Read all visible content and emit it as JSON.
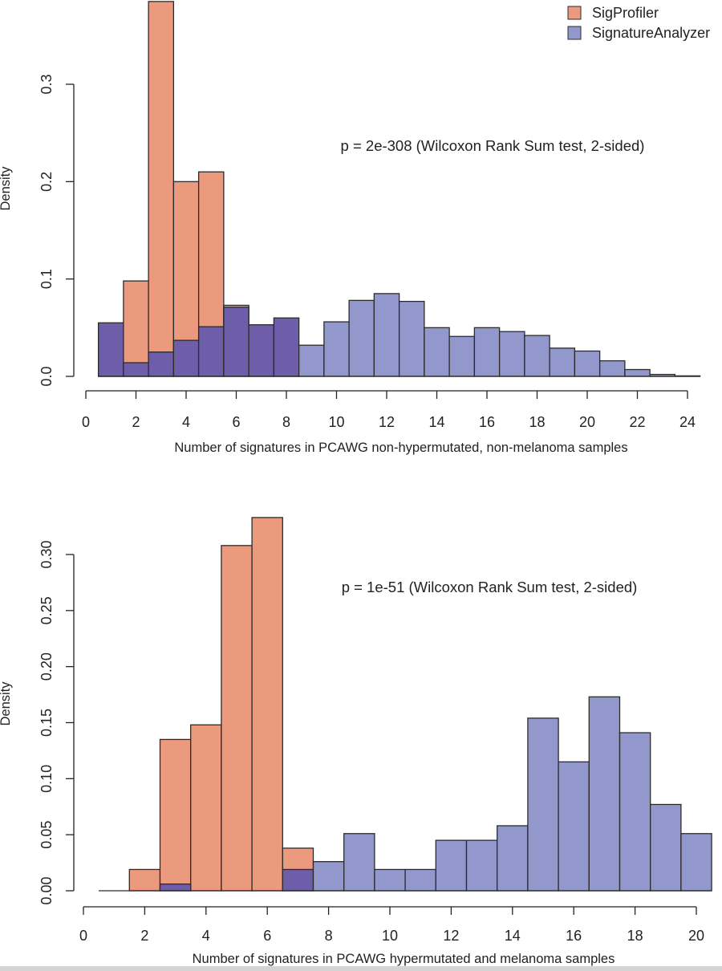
{
  "colors": {
    "sigprofiler": "#ec9a7d",
    "signatureanalyzer": "#9298cb",
    "overlap": "#6e5da8",
    "axis": "#222222",
    "bar_stroke": "#2b2b2b"
  },
  "legend": {
    "items": [
      {
        "label": "SigProfiler",
        "color": "#ec9a7d"
      },
      {
        "label": "SignatureAnalyzer",
        "color": "#9298cb"
      }
    ],
    "placement": "top-right"
  },
  "chart_data": [
    {
      "type": "bar",
      "subtype": "overlapping-histogram",
      "xlabel": "Number of signatures in PCAWG non-hypermutated, non-melanoma samples",
      "ylabel": "Density",
      "annotation": "p = 2e-308 (Wilcoxon Rank Sum test, 2-sided)",
      "xlim": [
        0,
        24
      ],
      "x_ticks": [
        "0",
        "2",
        "4",
        "6",
        "8",
        "10",
        "12",
        "14",
        "16",
        "18",
        "20",
        "22",
        "24"
      ],
      "ylim": [
        0,
        0.38
      ],
      "y_ticks": [
        "0.0",
        "0.1",
        "0.2",
        "0.3"
      ],
      "bin_starts": [
        0.5,
        1.5,
        2.5,
        3.5,
        4.5,
        5.5,
        6.5,
        7.5,
        8.5,
        9.5,
        10.5,
        11.5,
        12.5,
        13.5,
        14.5,
        15.5,
        16.5,
        17.5,
        18.5,
        19.5,
        20.5,
        21.5,
        22.5,
        23.5
      ],
      "bin_width": 1,
      "series": [
        {
          "name": "SigProfiler",
          "values": [
            0.003,
            0.098,
            0.385,
            0.2,
            0.21,
            0.073,
            0.023,
            0.012,
            0,
            0,
            0,
            0,
            0,
            0,
            0,
            0,
            0,
            0,
            0,
            0,
            0,
            0,
            0,
            0
          ]
        },
        {
          "name": "SignatureAnalyzer",
          "values": [
            0.055,
            0.014,
            0.025,
            0.037,
            0.051,
            0.071,
            0.053,
            0.06,
            0.032,
            0.056,
            0.078,
            0.085,
            0.077,
            0.05,
            0.041,
            0.05,
            0.046,
            0.042,
            0.029,
            0.026,
            0.016,
            0.007,
            0.002,
            0.0005
          ]
        }
      ],
      "grid": false
    },
    {
      "type": "bar",
      "subtype": "overlapping-histogram",
      "xlabel": "Number of signatures in PCAWG hypermutated and melanoma samples",
      "ylabel": "Density",
      "annotation": "p = 1e-51 (Wilcoxon Rank Sum test, 2-sided)",
      "xlim": [
        0,
        20
      ],
      "x_ticks": [
        "0",
        "2",
        "4",
        "6",
        "8",
        "10",
        "12",
        "14",
        "16",
        "18",
        "20"
      ],
      "ylim": [
        0,
        0.33
      ],
      "y_ticks": [
        "0.00",
        "0.05",
        "0.10",
        "0.15",
        "0.20",
        "0.25",
        "0.30"
      ],
      "bin_starts": [
        0.5,
        1.5,
        2.5,
        3.5,
        4.5,
        5.5,
        6.5,
        7.5,
        8.5,
        9.5,
        10.5,
        11.5,
        12.5,
        13.5,
        14.5,
        15.5,
        16.5,
        17.5,
        18.5,
        19.5
      ],
      "bin_width": 1,
      "series": [
        {
          "name": "SigProfiler",
          "values": [
            0,
            0.019,
            0.135,
            0.148,
            0.308,
            0.333,
            0.038,
            0,
            0,
            0,
            0,
            0,
            0,
            0,
            0,
            0,
            0,
            0,
            0,
            0
          ]
        },
        {
          "name": "SignatureAnalyzer",
          "values": [
            0,
            0,
            0.006,
            0,
            0,
            0,
            0.019,
            0.026,
            0.051,
            0.019,
            0.019,
            0.045,
            0.045,
            0.058,
            0.154,
            0.115,
            0.173,
            0.141,
            0.077,
            0.051
          ]
        }
      ],
      "grid": false
    }
  ]
}
